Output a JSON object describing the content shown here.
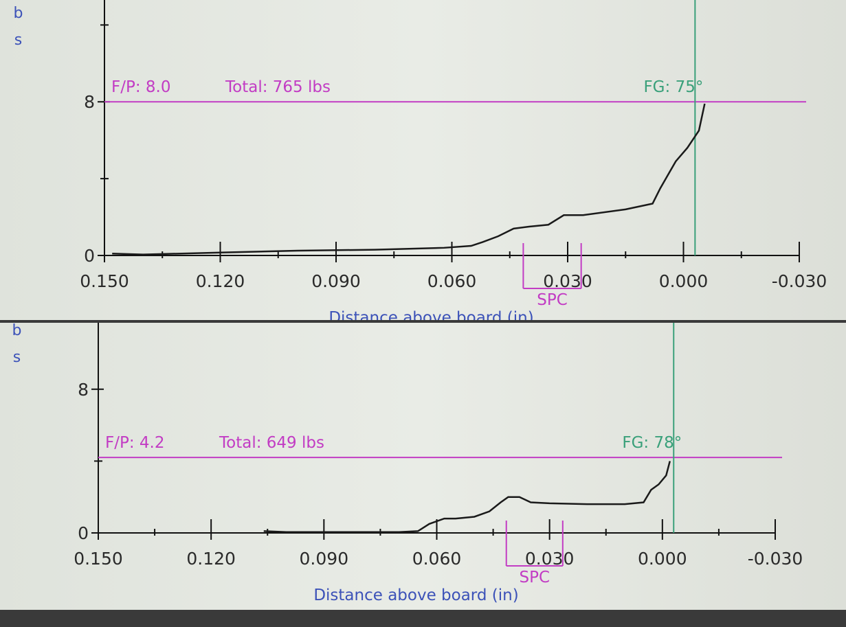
{
  "chart_data": [
    {
      "type": "line",
      "y_label": "lbs",
      "x_label": "Distance above board (in)",
      "xlim": [
        0.15,
        -0.03
      ],
      "xticks": [
        {
          "value": 0.15,
          "label": "0.150"
        },
        {
          "value": 0.12,
          "label": "0.120"
        },
        {
          "value": 0.09,
          "label": "0.090"
        },
        {
          "value": 0.06,
          "label": "0.060"
        },
        {
          "value": 0.03,
          "label": "0.030"
        },
        {
          "value": 0.0,
          "label": "0.000"
        },
        {
          "value": -0.03,
          "label": "-0.030"
        }
      ],
      "x_minor_ticks": [
        0.135,
        0.105,
        0.075,
        0.045,
        0.015,
        -0.015
      ],
      "ylim": [
        0,
        13.3
      ],
      "yticks": [
        0,
        8
      ],
      "y_minor_ticks": [
        4,
        12
      ],
      "x": [
        0.148,
        0.14,
        0.12,
        0.1,
        0.08,
        0.062,
        0.055,
        0.052,
        0.048,
        0.044,
        0.04,
        0.035,
        0.031,
        0.026,
        0.015,
        0.008,
        0.006,
        0.004,
        0.002,
        -0.001,
        -0.004,
        -0.0055
      ],
      "values": [
        0.1,
        0.05,
        0.15,
        0.25,
        0.3,
        0.4,
        0.5,
        0.7,
        1.0,
        1.4,
        1.5,
        1.6,
        2.1,
        2.1,
        2.4,
        2.7,
        3.5,
        4.2,
        4.9,
        5.6,
        6.5,
        7.9
      ],
      "color": "#1a1a1a",
      "reference_line": {
        "value": 8.0,
        "label": "F/P: 8.0",
        "total": "Total: 765 lbs",
        "color": "#c23cc4"
      },
      "fg_line": {
        "value": -0.003,
        "label": "FG: 75°",
        "color": "#3aa07a"
      },
      "spc": {
        "range": [
          0.0415,
          0.0265
        ],
        "label": "SPC",
        "color": "#c23cc4"
      }
    },
    {
      "type": "line",
      "y_label": "lbs",
      "x_label": "Distance above board (in)",
      "xlim": [
        0.15,
        -0.03
      ],
      "xticks": [
        {
          "value": 0.15,
          "label": "0.150"
        },
        {
          "value": 0.12,
          "label": "0.120"
        },
        {
          "value": 0.09,
          "label": "0.090"
        },
        {
          "value": 0.06,
          "label": "0.060"
        },
        {
          "value": 0.03,
          "label": "0.030"
        },
        {
          "value": 0.0,
          "label": "0.000"
        },
        {
          "value": -0.03,
          "label": "-0.030"
        }
      ],
      "x_minor_ticks": [
        0.135,
        0.105,
        0.075,
        0.045,
        0.015,
        -0.015
      ],
      "ylim": [
        0,
        11.7
      ],
      "yticks": [
        0,
        8
      ],
      "y_minor_ticks": [
        4
      ],
      "x": [
        0.106,
        0.1,
        0.09,
        0.08,
        0.07,
        0.065,
        0.062,
        0.058,
        0.055,
        0.05,
        0.046,
        0.043,
        0.041,
        0.038,
        0.035,
        0.03,
        0.02,
        0.01,
        0.005,
        0.003,
        0.001,
        -0.001,
        -0.002
      ],
      "values": [
        0.1,
        0.05,
        0.05,
        0.05,
        0.05,
        0.1,
        0.5,
        0.8,
        0.8,
        0.9,
        1.2,
        1.7,
        2.0,
        2.0,
        1.7,
        1.65,
        1.6,
        1.6,
        1.7,
        2.4,
        2.7,
        3.2,
        4.0
      ],
      "color": "#1a1a1a",
      "reference_line": {
        "value": 4.2,
        "label": "F/P: 4.2",
        "total": "Total: 649 lbs",
        "color": "#c23cc4"
      },
      "fg_line": {
        "value": -0.003,
        "label": "FG: 78°",
        "color": "#3aa07a"
      },
      "spc": {
        "range": [
          0.0415,
          0.0265
        ],
        "label": "SPC",
        "color": "#c23cc4"
      }
    }
  ]
}
